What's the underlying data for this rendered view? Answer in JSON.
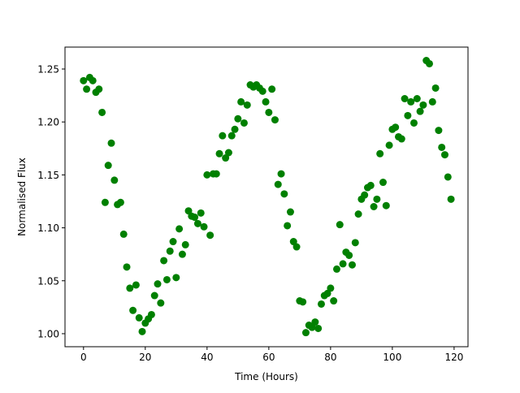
{
  "chart_data": {
    "type": "scatter",
    "title": "",
    "xlabel": "Time (Hours)",
    "ylabel": "Normalised Flux",
    "xlim": [
      -6,
      124.5
    ],
    "ylim": [
      0.9877,
      1.2707
    ],
    "xticks": [
      0,
      20,
      40,
      60,
      80,
      100,
      120
    ],
    "xtick_labels": [
      "0",
      "20",
      "40",
      "60",
      "80",
      "100",
      "120"
    ],
    "yticks": [
      1.0,
      1.05,
      1.1,
      1.15,
      1.2,
      1.25
    ],
    "ytick_labels": [
      "1.00",
      "1.05",
      "1.10",
      "1.15",
      "1.20",
      "1.25"
    ],
    "grid": false,
    "marker_color": "#008000",
    "x": [
      0,
      1,
      2,
      3,
      4,
      5,
      6,
      7,
      8,
      9,
      10,
      11,
      12,
      13,
      14,
      15,
      16,
      17,
      18,
      19,
      20,
      21,
      22,
      23,
      24,
      25,
      26,
      27,
      28,
      29,
      30,
      31,
      32,
      33,
      34,
      35,
      36,
      37,
      38,
      39,
      40,
      41,
      42,
      43,
      44,
      45,
      46,
      47,
      48,
      49,
      50,
      51,
      52,
      53,
      54,
      55,
      56,
      57,
      58,
      59,
      60,
      61,
      62,
      63,
      64,
      65,
      66,
      67,
      68,
      69,
      70,
      71,
      72,
      73,
      74,
      75,
      76,
      77,
      78,
      79,
      80,
      81,
      82,
      83,
      84,
      85,
      86,
      87,
      88,
      89,
      90,
      91,
      92,
      93,
      94,
      95,
      96,
      97,
      98,
      99,
      100,
      101,
      102,
      103,
      104,
      105,
      106,
      107,
      108,
      109,
      110,
      111,
      112,
      113,
      114,
      115,
      116,
      117,
      118,
      119
    ],
    "y": [
      1.239,
      1.231,
      1.242,
      1.239,
      1.228,
      1.231,
      1.209,
      1.124,
      1.159,
      1.18,
      1.145,
      1.122,
      1.124,
      1.094,
      1.063,
      1.043,
      1.022,
      1.046,
      1.015,
      1.002,
      1.01,
      1.014,
      1.018,
      1.036,
      1.047,
      1.029,
      1.069,
      1.051,
      1.078,
      1.087,
      1.053,
      1.099,
      1.075,
      1.084,
      1.116,
      1.111,
      1.11,
      1.104,
      1.114,
      1.101,
      1.15,
      1.093,
      1.151,
      1.151,
      1.17,
      1.187,
      1.166,
      1.171,
      1.187,
      1.193,
      1.203,
      1.219,
      1.199,
      1.216,
      1.235,
      1.233,
      1.235,
      1.232,
      1.229,
      1.219,
      1.209,
      1.231,
      1.202,
      1.141,
      1.151,
      1.132,
      1.102,
      1.115,
      1.087,
      1.082,
      1.031,
      1.03,
      1.001,
      1.008,
      1.006,
      1.011,
      1.005,
      1.028,
      1.036,
      1.038,
      1.043,
      1.031,
      1.061,
      1.103,
      1.066,
      1.077,
      1.074,
      1.065,
      1.086,
      1.113,
      1.127,
      1.131,
      1.138,
      1.14,
      1.12,
      1.127,
      1.17,
      1.143,
      1.121,
      1.178,
      1.193,
      1.195,
      1.186,
      1.184,
      1.222,
      1.206,
      1.219,
      1.199,
      1.222,
      1.21,
      1.216,
      1.258,
      1.255,
      1.219,
      1.232,
      1.192,
      1.176,
      1.169,
      1.148,
      1.127
    ]
  }
}
